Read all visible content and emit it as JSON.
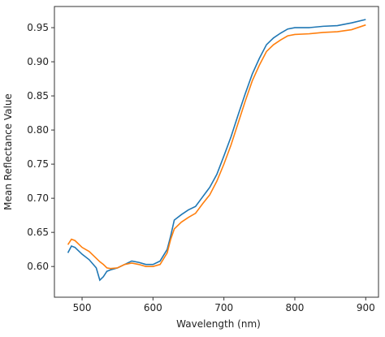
{
  "chart_data": {
    "type": "line",
    "xlabel": "Wavelength (nm)",
    "ylabel": "Mean Reflectance Value",
    "x": [
      480,
      485,
      490,
      500,
      510,
      520,
      525,
      530,
      535,
      540,
      550,
      560,
      570,
      580,
      590,
      600,
      610,
      620,
      625,
      630,
      640,
      650,
      660,
      670,
      680,
      690,
      700,
      710,
      720,
      730,
      740,
      750,
      760,
      770,
      780,
      790,
      800,
      820,
      840,
      860,
      880,
      900
    ],
    "series": [
      {
        "color": "#1f77b4",
        "values": [
          0.62,
          0.63,
          0.628,
          0.618,
          0.61,
          0.598,
          0.58,
          0.585,
          0.593,
          0.595,
          0.598,
          0.603,
          0.608,
          0.606,
          0.603,
          0.603,
          0.608,
          0.625,
          0.645,
          0.668,
          0.676,
          0.683,
          0.688,
          0.702,
          0.716,
          0.735,
          0.762,
          0.79,
          0.822,
          0.853,
          0.882,
          0.905,
          0.925,
          0.935,
          0.942,
          0.948,
          0.95,
          0.95,
          0.952,
          0.953,
          0.957,
          0.962
        ]
      },
      {
        "color": "#ff7f0e",
        "values": [
          0.632,
          0.64,
          0.638,
          0.628,
          0.622,
          0.612,
          0.607,
          0.603,
          0.598,
          0.597,
          0.598,
          0.603,
          0.605,
          0.603,
          0.6,
          0.6,
          0.603,
          0.62,
          0.64,
          0.655,
          0.665,
          0.672,
          0.678,
          0.692,
          0.705,
          0.725,
          0.75,
          0.778,
          0.81,
          0.842,
          0.872,
          0.895,
          0.915,
          0.925,
          0.932,
          0.938,
          0.94,
          0.941,
          0.943,
          0.944,
          0.947,
          0.954
        ]
      }
    ],
    "xlim": [
      461,
      918
    ],
    "xticks": [
      500,
      600,
      700,
      800,
      900
    ],
    "ylim": [
      0.555,
      0.981
    ],
    "yticks": [
      {
        "value": 0.6,
        "label": "0.60"
      },
      0.65,
      {
        "value": 0.7,
        "label": "0.70"
      },
      0.75,
      {
        "value": 0.8,
        "label": "0.80"
      },
      0.85,
      {
        "value": 0.9,
        "label": "0.90"
      },
      0.95
    ],
    "grid": false
  }
}
